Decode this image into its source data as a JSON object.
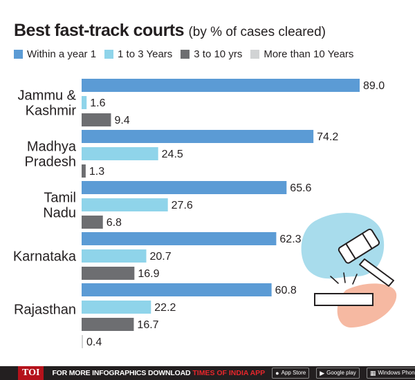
{
  "title": "Best fast-track courts",
  "subtitle": "(by % of cases cleared)",
  "legend": [
    {
      "label": "Within a year 1",
      "color": "#5b9bd5"
    },
    {
      "label": "1 to 3 Years",
      "color": "#8fd4ea"
    },
    {
      "label": "3 to 10 yrs",
      "color": "#6d6e71"
    },
    {
      "label": "More than 10 Years",
      "color": "#d1d3d4"
    }
  ],
  "chart_data": {
    "type": "bar",
    "orientation": "horizontal",
    "title": "Best fast-track courts (by % of cases cleared)",
    "xlabel": "",
    "ylabel": "",
    "xlim": [
      0,
      89.0
    ],
    "grid": false,
    "legend_position": "top",
    "groups": [
      {
        "label": [
          "Jammu &",
          "Kashmir"
        ],
        "bars": [
          {
            "series": "Within a year 1",
            "value": 89.0,
            "label": "89.0"
          },
          {
            "series": "1 to 3 Years",
            "value": 1.6,
            "label": "1.6"
          },
          {
            "series": "3 to 10 yrs",
            "value": 9.4,
            "label": "9.4"
          }
        ]
      },
      {
        "label": [
          "Madhya",
          "Pradesh"
        ],
        "bars": [
          {
            "series": "Within a year 1",
            "value": 74.2,
            "label": "74.2"
          },
          {
            "series": "1 to 3 Years",
            "value": 24.5,
            "label": "24.5"
          },
          {
            "series": "3 to 10 yrs",
            "value": 1.3,
            "label": "1.3"
          }
        ]
      },
      {
        "label": [
          "Tamil",
          "Nadu"
        ],
        "bars": [
          {
            "series": "Within a year 1",
            "value": 65.6,
            "label": "65.6"
          },
          {
            "series": "1 to 3 Years",
            "value": 27.6,
            "label": "27.6"
          },
          {
            "series": "3 to 10 yrs",
            "value": 6.8,
            "label": "6.8"
          }
        ]
      },
      {
        "label": [
          "Karnataka"
        ],
        "bars": [
          {
            "series": "Within a year 1",
            "value": 62.3,
            "label": "62.3"
          },
          {
            "series": "1 to 3 Years",
            "value": 20.7,
            "label": "20.7"
          },
          {
            "series": "3 to 10 yrs",
            "value": 16.9,
            "label": "16.9"
          }
        ]
      },
      {
        "label": [
          "Rajasthan"
        ],
        "bars": [
          {
            "series": "Within a year 1",
            "value": 60.8,
            "label": "60.8"
          },
          {
            "series": "1 to 3 Years",
            "value": 22.2,
            "label": "22.2"
          },
          {
            "series": "3 to 10 yrs",
            "value": 16.7,
            "label": "16.7"
          },
          {
            "series": "More than 10 Years",
            "value": 0.4,
            "label": "0.4"
          }
        ]
      }
    ]
  },
  "illustration": {
    "icon": "gavel-icon",
    "colors": {
      "blob_blue": "#a8dcec",
      "blob_peach": "#f6b9a2",
      "line": "#231f20"
    }
  },
  "footer": {
    "brand": "TOI",
    "text": "FOR MORE  INFOGRAPHICS DOWNLOAD",
    "brand_name": "TIMES OF INDIA APP",
    "badges": [
      "App Store",
      "Google play",
      "Windows Phone"
    ]
  }
}
